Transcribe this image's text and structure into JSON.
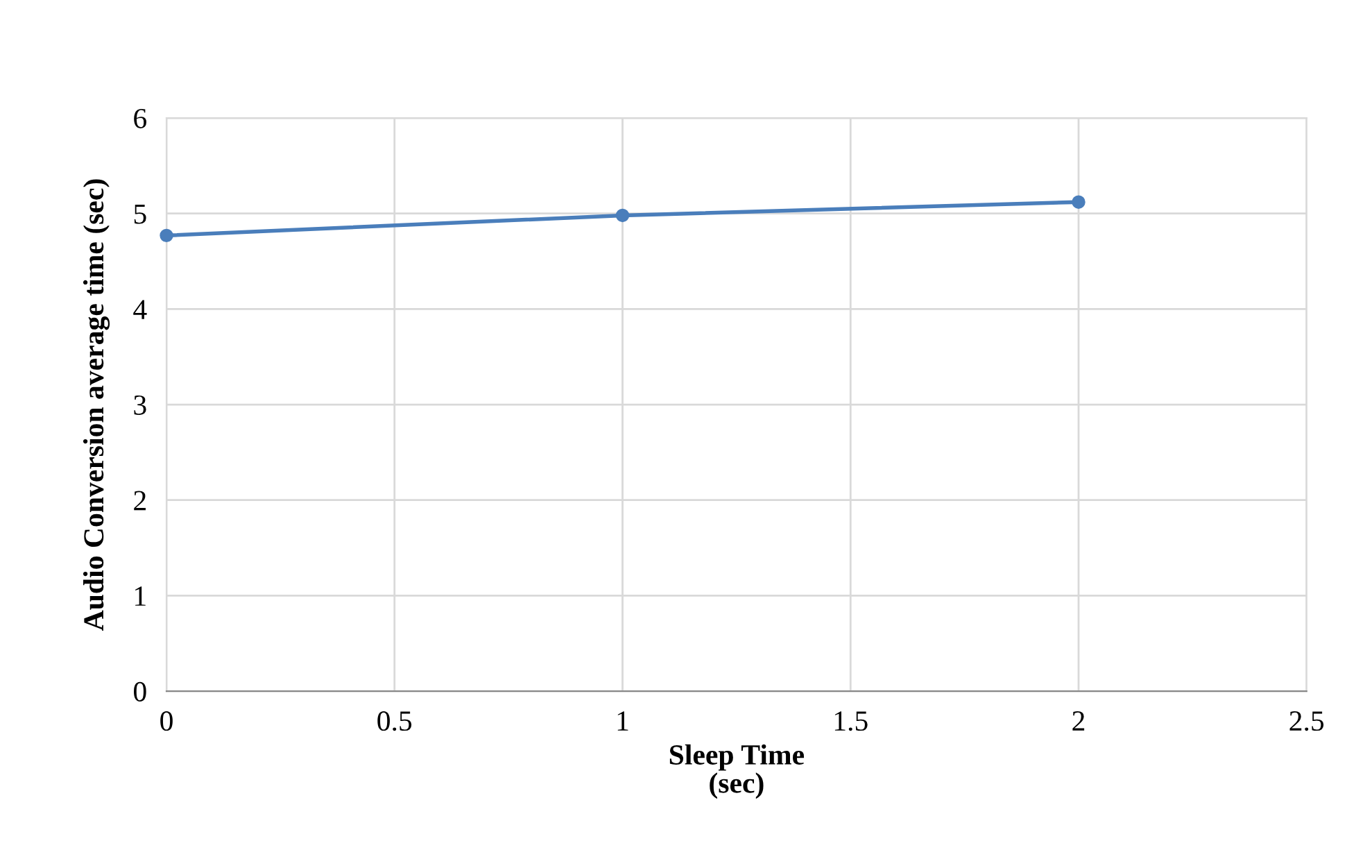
{
  "chart_data": {
    "type": "line",
    "xlabel": "Sleep Time\n(sec)",
    "ylabel": "Audio Conversion average time (sec)",
    "x": [
      0,
      1,
      2
    ],
    "series": [
      {
        "color": "#4a7ebb",
        "values": [
          4.77,
          4.98,
          5.12
        ]
      }
    ],
    "xlim": [
      0,
      2.5
    ],
    "xticks": [
      0,
      0.5,
      1,
      1.5,
      2,
      2.5
    ],
    "ylim": [
      0,
      6
    ],
    "yticks": [
      0,
      1,
      2,
      3,
      4,
      5,
      6
    ],
    "grid": true,
    "marker": "circle",
    "line_style": "solid"
  }
}
